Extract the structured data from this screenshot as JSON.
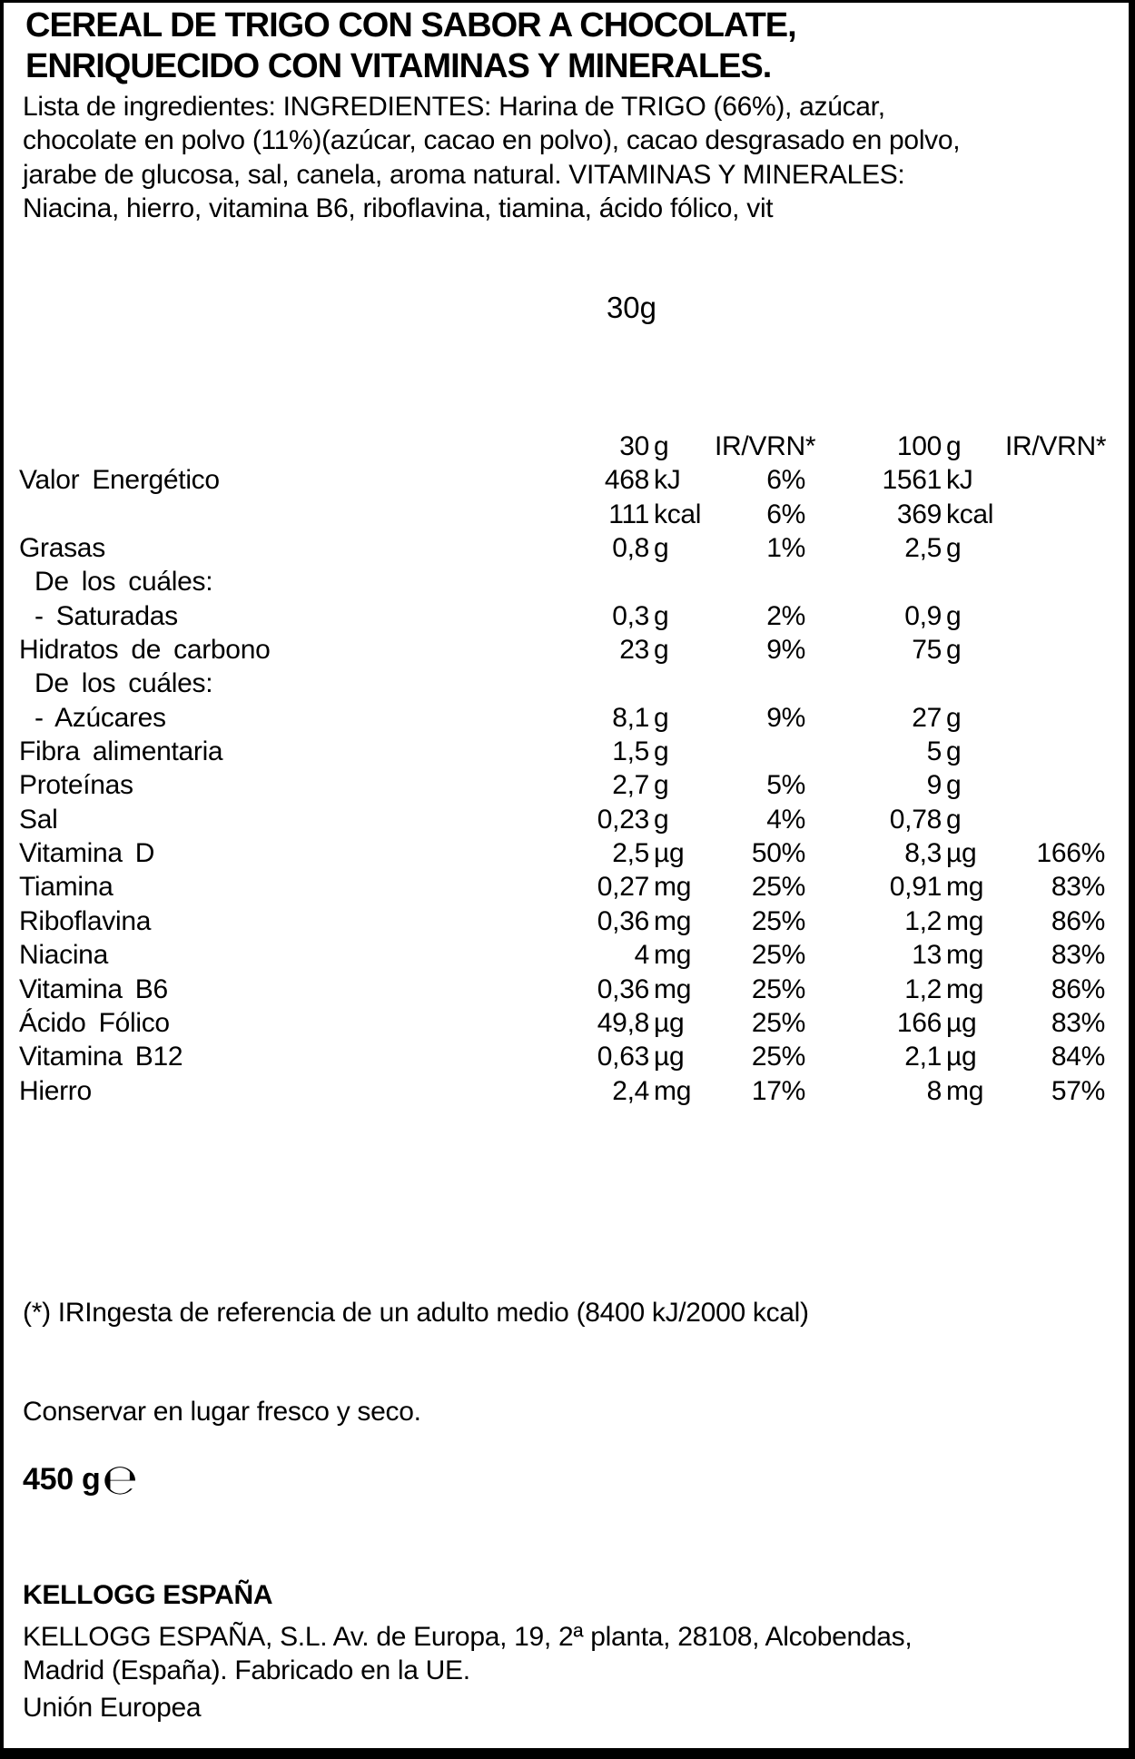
{
  "title": {
    "line1": "CEREAL DE TRIGO CON SABOR A CHOCOLATE,",
    "line2": "ENRIQUECIDO CON VITAMINAS Y MINERALES."
  },
  "ingredients": {
    "lines": [
      "Lista de ingredientes: INGREDIENTES: Harina de TRIGO (66%), azúcar,",
      "chocolate en polvo (11%)(azúcar, cacao en polvo), cacao desgrasado en polvo,",
      "jarabe de glucosa, sal, canela, aroma natural. VITAMINAS Y MINERALES:",
      "Niacina, hierro, vitamina B6, riboflavina, tiamina, ácido fólico, vit"
    ]
  },
  "serving_size": "30g",
  "nutrition_table": {
    "header": {
      "amount1_num": "30",
      "amount1_unit": "g",
      "pct1": "IR/VRN*",
      "amount2_num": "100",
      "amount2_unit": "g",
      "pct2": "IR/VRN*"
    },
    "rows": [
      {
        "label": "Valor Energético",
        "indent": 0,
        "v30": "468",
        "u30": "kJ",
        "p30": "6%",
        "v100": "1561",
        "u100": "kJ",
        "p100": ""
      },
      {
        "label": "",
        "indent": 0,
        "v30": "111",
        "u30": "kcal",
        "p30": "6%",
        "v100": "369",
        "u100": "kcal",
        "p100": ""
      },
      {
        "label": "Grasas",
        "indent": 0,
        "v30": "0,8",
        "u30": "g",
        "p30": "1%",
        "v100": "2,5",
        "u100": "g",
        "p100": ""
      },
      {
        "label": "De los cuáles:",
        "indent": 1,
        "v30": "",
        "u30": "",
        "p30": "",
        "v100": "",
        "u100": "",
        "p100": ""
      },
      {
        "label": "- Saturadas",
        "indent": 1,
        "v30": "0,3",
        "u30": "g",
        "p30": "2%",
        "v100": "0,9",
        "u100": "g",
        "p100": ""
      },
      {
        "label": "Hidratos de carbono",
        "indent": 0,
        "v30": "23",
        "u30": "g",
        "p30": "9%",
        "v100": "75",
        "u100": "g",
        "p100": ""
      },
      {
        "label": "De los cuáles:",
        "indent": 1,
        "v30": "",
        "u30": "",
        "p30": "",
        "v100": "",
        "u100": "",
        "p100": ""
      },
      {
        "label": "- Azúcares",
        "indent": 1,
        "v30": "8,1",
        "u30": "g",
        "p30": "9%",
        "v100": "27",
        "u100": "g",
        "p100": ""
      },
      {
        "label": "Fibra alimentaria",
        "indent": 0,
        "v30": "1,5",
        "u30": "g",
        "p30": "",
        "v100": "5",
        "u100": "g",
        "p100": ""
      },
      {
        "label": "Proteínas",
        "indent": 0,
        "v30": "2,7",
        "u30": "g",
        "p30": "5%",
        "v100": "9",
        "u100": "g",
        "p100": ""
      },
      {
        "label": "Sal",
        "indent": 0,
        "v30": "0,23",
        "u30": "g",
        "p30": "4%",
        "v100": "0,78",
        "u100": "g",
        "p100": ""
      },
      {
        "label": "Vitamina D",
        "indent": 0,
        "v30": "2,5",
        "u30": "µg",
        "p30": "50%",
        "v100": "8,3",
        "u100": "µg",
        "p100": "166%"
      },
      {
        "label": "Tiamina",
        "indent": 0,
        "v30": "0,27",
        "u30": "mg",
        "p30": "25%",
        "v100": "0,91",
        "u100": "mg",
        "p100": "83%"
      },
      {
        "label": "Riboflavina",
        "indent": 0,
        "v30": "0,36",
        "u30": "mg",
        "p30": "25%",
        "v100": "1,2",
        "u100": "mg",
        "p100": "86%"
      },
      {
        "label": "Niacina",
        "indent": 0,
        "v30": "4",
        "u30": "mg",
        "p30": "25%",
        "v100": "13",
        "u100": "mg",
        "p100": "83%"
      },
      {
        "label": "Vitamina B6",
        "indent": 0,
        "v30": "0,36",
        "u30": "mg",
        "p30": "25%",
        "v100": "1,2",
        "u100": "mg",
        "p100": "86%"
      },
      {
        "label": "Ácido Fólico",
        "indent": 0,
        "v30": "49,8",
        "u30": "µg",
        "p30": "25%",
        "v100": "166",
        "u100": "µg",
        "p100": "83%"
      },
      {
        "label": "Vitamina B12",
        "indent": 0,
        "v30": "0,63",
        "u30": "µg",
        "p30": "25%",
        "v100": "2,1",
        "u100": "µg",
        "p100": "84%"
      },
      {
        "label": "Hierro",
        "indent": 0,
        "v30": "2,4",
        "u30": "mg",
        "p30": "17%",
        "v100": "8",
        "u100": "mg",
        "p100": "57%"
      }
    ]
  },
  "footnote": "(*) IRIngesta de referencia de un adulto medio (8400 kJ/2000 kcal)",
  "storage": "Conservar en lugar fresco y seco.",
  "net_weight": "450 g",
  "estimated_sign": "℮",
  "manufacturer": {
    "name": "KELLOGG ESPAÑA",
    "address_line1": "KELLOGG ESPAÑA, S.L. Av. de Europa, 19, 2ª planta, 28108, Alcobendas,",
    "address_line2": "Madrid (España). Fabricado en la UE.",
    "region": "Unión Europea"
  },
  "colors": {
    "text": "#000000",
    "background": "#ffffff"
  }
}
